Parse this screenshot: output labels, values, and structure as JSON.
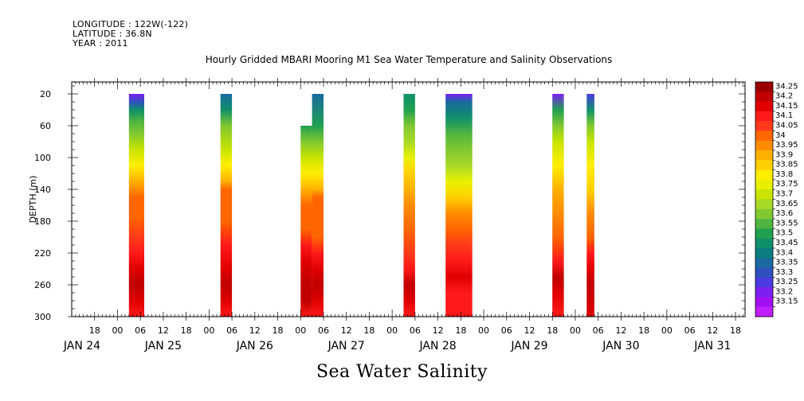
{
  "header": {
    "longitude": "LONGITUDE : 122W(-122)",
    "latitude": "LATITUDE : 36.8N",
    "year": "YEAR : 2011",
    "title": "Hourly Gridded MBARI Mooring M1 Sea Water Temperature and Salinity Observations"
  },
  "footer": {
    "variable": "Sea Water Salinity"
  },
  "chart_data": {
    "type": "heatmap",
    "title": "Hourly Gridded MBARI Mooring M1 Sea Water Temperature and Salinity Observations",
    "xlabel": "",
    "ylabel": "DEPTH (m)",
    "variable": "Sea Water Salinity",
    "x_ticks": [
      "18",
      "00",
      "06",
      "12",
      "18",
      "00",
      "06",
      "12",
      "18",
      "00",
      "06",
      "12",
      "18",
      "00",
      "06",
      "12",
      "18",
      "00",
      "06",
      "12",
      "18",
      "00",
      "06",
      "12",
      "18",
      "00",
      "06",
      "12",
      "18"
    ],
    "x_date_labels": [
      "JAN 24",
      "JAN 25",
      "JAN 26",
      "JAN 27",
      "JAN 28",
      "JAN 29",
      "JAN 30",
      "JAN 31"
    ],
    "y_ticks": [
      20,
      60,
      100,
      140,
      180,
      220,
      260,
      300
    ],
    "ylim": [
      300,
      5
    ],
    "y_inverted": true,
    "colorbar": {
      "levels": [
        "34.25",
        "34.2",
        "34.15",
        "34.1",
        "34.05",
        "34",
        "33.95",
        "33.9",
        "33.85",
        "33.8",
        "33.75",
        "33.7",
        "33.65",
        "33.6",
        "33.55",
        "33.5",
        "33.45",
        "33.4",
        "33.35",
        "33.3",
        "33.25",
        "33.2",
        "33.15"
      ],
      "colors": [
        "#990000",
        "#c00000",
        "#e00000",
        "#ff1a1a",
        "#ff3a1a",
        "#ff6600",
        "#ff8c00",
        "#ffb000",
        "#ffd000",
        "#ffee00",
        "#e8f000",
        "#c8e400",
        "#a8d828",
        "#80c830",
        "#50b440",
        "#20a050",
        "#10906a",
        "#0a7e80",
        "#1a6aa0",
        "#3050c0",
        "#4a3ae0",
        "#7a20f0",
        "#a010f0",
        "#c020ff"
      ]
    },
    "segments": [
      {
        "start": "2011-01-25 03:00",
        "end": "2011-01-25 07:00",
        "depth_top": 20,
        "depth_bottom": 300,
        "profile": [
          [
            20,
            33.22
          ],
          [
            30,
            33.3
          ],
          [
            40,
            33.45
          ],
          [
            55,
            33.55
          ],
          [
            70,
            33.6
          ],
          [
            90,
            33.72
          ],
          [
            110,
            33.82
          ],
          [
            130,
            33.92
          ],
          [
            150,
            34.0
          ],
          [
            175,
            34.03
          ],
          [
            200,
            34.07
          ],
          [
            220,
            34.12
          ],
          [
            240,
            34.18
          ],
          [
            260,
            34.23
          ],
          [
            280,
            34.18
          ],
          [
            300,
            34.1
          ]
        ]
      },
      {
        "start": "2011-01-26 03:00",
        "end": "2011-01-26 06:00",
        "depth_top": 20,
        "depth_bottom": 300,
        "profile": [
          [
            20,
            33.35
          ],
          [
            40,
            33.48
          ],
          [
            60,
            33.6
          ],
          [
            90,
            33.7
          ],
          [
            110,
            33.8
          ],
          [
            130,
            33.92
          ],
          [
            140,
            34.0
          ],
          [
            180,
            34.04
          ],
          [
            210,
            34.1
          ],
          [
            240,
            34.15
          ],
          [
            260,
            34.22
          ],
          [
            280,
            34.18
          ],
          [
            300,
            34.12
          ]
        ]
      },
      {
        "start": "2011-01-27 00:00",
        "end": "2011-01-27 03:00",
        "depth_top": 60,
        "depth_bottom": 300,
        "profile": [
          [
            60,
            33.52
          ],
          [
            80,
            33.62
          ],
          [
            100,
            33.72
          ],
          [
            120,
            33.82
          ],
          [
            140,
            33.94
          ],
          [
            160,
            34.0
          ],
          [
            190,
            34.03
          ],
          [
            210,
            34.1
          ],
          [
            230,
            34.16
          ],
          [
            260,
            34.22
          ],
          [
            280,
            34.2
          ],
          [
            300,
            34.14
          ]
        ]
      },
      {
        "start": "2011-01-27 03:00",
        "end": "2011-01-27 06:00",
        "depth_top": 20,
        "depth_bottom": 300,
        "profile": [
          [
            20,
            33.38
          ],
          [
            60,
            33.52
          ],
          [
            80,
            33.62
          ],
          [
            100,
            33.72
          ],
          [
            120,
            33.82
          ],
          [
            140,
            33.94
          ],
          [
            150,
            34.0
          ],
          [
            200,
            34.04
          ],
          [
            220,
            34.1
          ],
          [
            240,
            34.16
          ],
          [
            260,
            34.2
          ],
          [
            280,
            34.18
          ],
          [
            300,
            34.14
          ]
        ]
      },
      {
        "start": "2011-01-28 03:00",
        "end": "2011-01-28 06:00",
        "depth_top": 20,
        "depth_bottom": 300,
        "profile": [
          [
            20,
            33.45
          ],
          [
            40,
            33.52
          ],
          [
            60,
            33.6
          ],
          [
            80,
            33.68
          ],
          [
            100,
            33.76
          ],
          [
            120,
            33.86
          ],
          [
            140,
            33.92
          ],
          [
            160,
            33.98
          ],
          [
            190,
            34.03
          ],
          [
            220,
            34.08
          ],
          [
            240,
            34.14
          ],
          [
            260,
            34.22
          ],
          [
            280,
            34.16
          ],
          [
            300,
            34.1
          ]
        ]
      },
      {
        "start": "2011-01-28 14:00",
        "end": "2011-01-28 21:00",
        "depth_top": 20,
        "depth_bottom": 300,
        "profile": [
          [
            20,
            33.2
          ],
          [
            30,
            33.35
          ],
          [
            50,
            33.45
          ],
          [
            70,
            33.55
          ],
          [
            90,
            33.6
          ],
          [
            110,
            33.68
          ],
          [
            130,
            33.78
          ],
          [
            150,
            33.88
          ],
          [
            170,
            33.95
          ],
          [
            190,
            34.0
          ],
          [
            210,
            34.05
          ],
          [
            230,
            34.12
          ],
          [
            250,
            34.16
          ],
          [
            270,
            34.12
          ],
          [
            300,
            34.1
          ]
        ]
      },
      {
        "start": "2011-01-29 18:00",
        "end": "2011-01-29 21:00",
        "depth_top": 20,
        "depth_bottom": 300,
        "profile": [
          [
            20,
            33.2
          ],
          [
            40,
            33.5
          ],
          [
            60,
            33.6
          ],
          [
            80,
            33.7
          ],
          [
            110,
            33.8
          ],
          [
            140,
            33.9
          ],
          [
            170,
            33.96
          ],
          [
            200,
            34.02
          ],
          [
            230,
            34.12
          ],
          [
            250,
            34.22
          ],
          [
            270,
            34.18
          ],
          [
            300,
            34.12
          ]
        ]
      },
      {
        "start": "2011-01-30 03:00",
        "end": "2011-01-30 05:00",
        "depth_top": 20,
        "depth_bottom": 300,
        "profile": [
          [
            20,
            33.25
          ],
          [
            40,
            33.45
          ],
          [
            60,
            33.6
          ],
          [
            80,
            33.7
          ],
          [
            110,
            33.8
          ],
          [
            140,
            33.88
          ],
          [
            170,
            33.96
          ],
          [
            200,
            34.03
          ],
          [
            220,
            34.1
          ],
          [
            240,
            34.16
          ],
          [
            260,
            34.2
          ],
          [
            300,
            34.18
          ]
        ]
      }
    ]
  }
}
